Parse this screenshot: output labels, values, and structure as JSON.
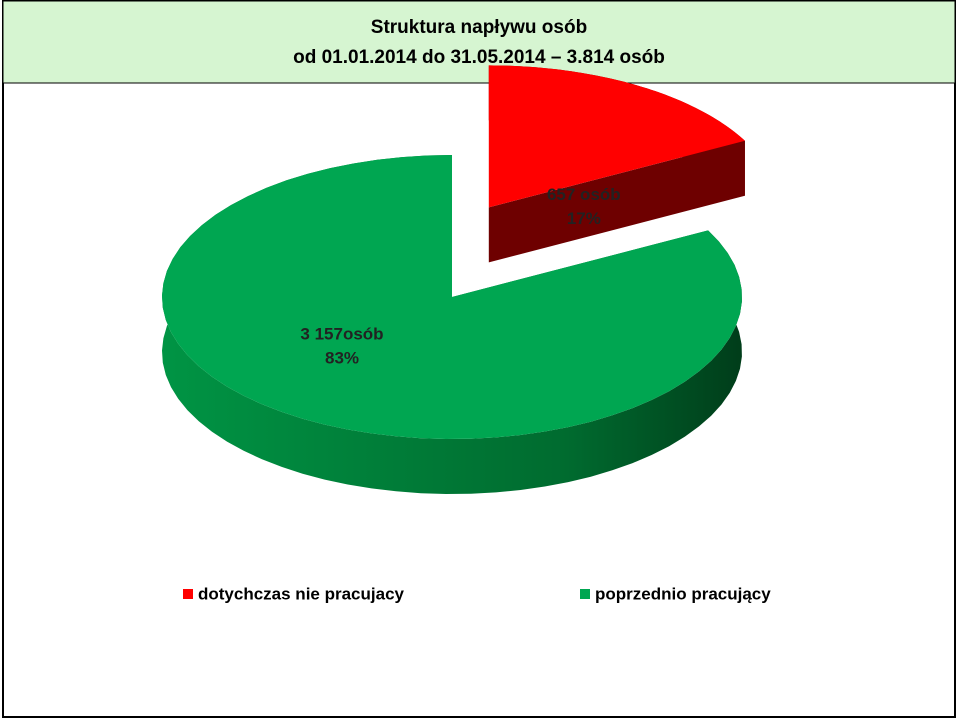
{
  "chart_data": {
    "type": "pie",
    "title": "Struktura napływu osób",
    "subtitle": "od 01.01.2014 do 31.05.2014 – 3.814 osób",
    "categories": [
      "dotychczas nie pracujacy",
      "poprzednio pracujący"
    ],
    "values": [
      657,
      3157
    ],
    "value_labels": [
      "657 osób",
      "3 157osób"
    ],
    "percent_labels": [
      "17%",
      "83%"
    ],
    "colors": [
      "#ff0000",
      "#00a651"
    ]
  }
}
